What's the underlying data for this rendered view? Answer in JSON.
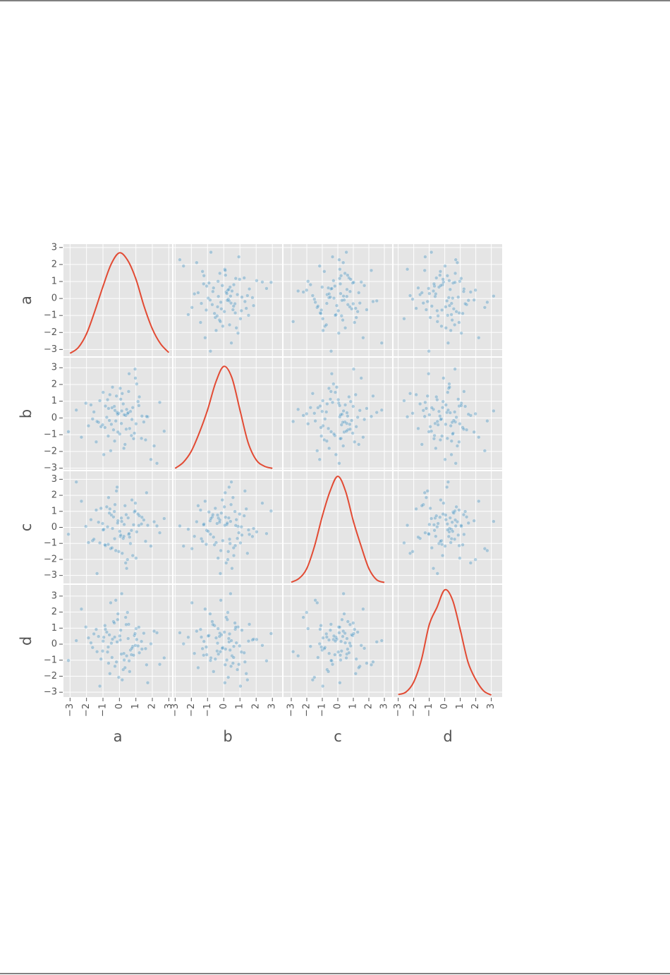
{
  "chart_data": {
    "type": "scatter_matrix",
    "point_color": "#348ABD",
    "kde_color": "#E24A33",
    "background": "#E5E5E5",
    "grid": true,
    "density_lim": [
      0,
      0.45
    ],
    "variables": [
      {
        "name": "a",
        "lim": [
          -3.4,
          3.2
        ],
        "ticks": [
          {
            "value": -3,
            "label": "−3"
          },
          {
            "value": -2,
            "label": "−2"
          },
          {
            "value": -1,
            "label": "−1"
          },
          0,
          1,
          2,
          3
        ],
        "values": [
          0.12,
          -0.85,
          1.34,
          -0.27,
          0.56,
          -1.63,
          0.91,
          -0.04,
          2.11,
          -0.72,
          0.38,
          -1.12,
          1.05,
          -0.49,
          0.23,
          -2.31,
          0.67,
          1.48,
          -0.18,
          -0.95,
          0.81,
          -0.36,
          1.72,
          0.05,
          -1.41,
          0.44,
          -0.61,
          2.45,
          -0.09,
          0.97,
          -1.88,
          0.29,
          -0.53,
          1.21,
          -0.14,
          0.62,
          -2.04,
          1.59,
          -0.77,
          0.17,
          -1.27,
          0.73,
          -0.31,
          1.91,
          -0.66,
          0.08,
          -1.02,
          0.49,
          2.72,
          -0.42,
          0.34,
          -1.55,
          1.13,
          -0.22,
          0.86,
          -2.62,
          0.59,
          -0.88,
          1.37,
          0.02,
          -0.58,
          1.01,
          -1.73,
          0.27,
          -0.11,
          0.76,
          -1.19,
          2.28,
          -0.45,
          0.41,
          -0.99,
          1.65,
          -0.29,
          0.14,
          -1.36,
          0.95,
          -3.1,
          0.53,
          -0.68,
          1.18
        ],
        "kde": {
          "x": [
            -3,
            -2.5,
            -2,
            -1.5,
            -1,
            -0.5,
            0,
            0.5,
            1,
            1.5,
            2,
            2.5,
            3
          ],
          "density": [
            0.012,
            0.035,
            0.09,
            0.18,
            0.28,
            0.37,
            0.415,
            0.385,
            0.31,
            0.2,
            0.11,
            0.05,
            0.015
          ]
        }
      },
      {
        "name": "b",
        "lim": [
          -3.1,
          3.6
        ],
        "ticks": [
          {
            "value": -3,
            "label": "−3"
          },
          {
            "value": -2,
            "label": "−2"
          },
          {
            "value": -1,
            "label": "−1"
          },
          0,
          1,
          2,
          3
        ],
        "values": [
          -0.33,
          0.71,
          -1.22,
          0.45,
          1.58,
          -0.06,
          -0.91,
          0.28,
          -1.67,
          1.09,
          0.15,
          -0.52,
          2.03,
          -0.38,
          0.84,
          -1.15,
          0.39,
          -0.24,
          1.31,
          -2.19,
          0.62,
          -0.71,
          0.07,
          1.77,
          -1.43,
          0.51,
          -0.15,
          0.93,
          -0.84,
          2.38,
          -0.47,
          0.19,
          -1.96,
          1.26,
          0.33,
          -0.63,
          0.88,
          -1.31,
          0.04,
          1.46,
          -0.26,
          -1.05,
          0.69,
          -2.48,
          0.57,
          1.12,
          -0.41,
          0.25,
          -0.79,
          1.84,
          -1.58,
          0.36,
          0.98,
          -0.18,
          -1.24,
          0.47,
          2.64,
          -0.57,
          0.11,
          -0.96,
          1.39,
          -0.35,
          0.78,
          -1.81,
          0.22,
          -0.09,
          1.03,
          -2.71,
          0.61,
          -0.67,
          1.53,
          0.09,
          -1.38,
          0.42,
          -0.21,
          2.92,
          -0.82,
          0.31,
          -1.08,
          0.74
        ],
        "kde": {
          "x": [
            -3,
            -2.5,
            -2,
            -1.5,
            -1,
            -0.5,
            0,
            0.5,
            1,
            1.5,
            2,
            2.5,
            3
          ],
          "density": [
            0.006,
            0.03,
            0.075,
            0.15,
            0.24,
            0.35,
            0.415,
            0.37,
            0.24,
            0.11,
            0.04,
            0.015,
            0.006
          ]
        }
      },
      {
        "name": "c",
        "lim": [
          -3.5,
          3.5
        ],
        "ticks": [
          {
            "value": -3,
            "label": "−3"
          },
          {
            "value": -2,
            "label": "−2"
          },
          {
            "value": -1,
            "label": "−1"
          },
          0,
          1,
          2,
          3
        ],
        "values": [
          0.58,
          -1.14,
          0.21,
          1.42,
          -0.44,
          -0.83,
          0.96,
          -1.51,
          0.35,
          0.03,
          -2.22,
          1.19,
          -0.28,
          0.77,
          -0.69,
          1.63,
          -1.01,
          0.46,
          2.27,
          -0.12,
          -1.76,
          0.65,
          0.13,
          -0.57,
          1.08,
          -2.56,
          0.89,
          -0.34,
          0.41,
          1.51,
          -0.95,
          0.18,
          -1.33,
          0.72,
          2.51,
          -0.61,
          0.06,
          -0.87,
          1.28,
          -1.62,
          0.32,
          -0.19,
          0.99,
          -1.17,
          1.86,
          -0.48,
          0.24,
          -2.01,
          0.55,
          -0.07,
          1.35,
          -0.74,
          0.83,
          -1.45,
          0.16,
          2.83,
          -0.39,
          -1.09,
          0.63,
          -0.25,
          1.15,
          -1.92,
          0.48,
          -0.56,
          0.27,
          1.71,
          -0.97,
          0.09,
          -1.28,
          0.79,
          -0.16,
          2.16,
          -0.71,
          0.37,
          -2.88,
          1.02,
          -0.43,
          0.59,
          -1.06,
          0.12
        ],
        "kde": {
          "x": [
            -3,
            -2.5,
            -2,
            -1.5,
            -1,
            -0.5,
            0,
            0.5,
            1,
            1.5,
            2,
            2.5,
            3
          ],
          "density": [
            0.005,
            0.02,
            0.06,
            0.15,
            0.27,
            0.37,
            0.43,
            0.37,
            0.25,
            0.15,
            0.06,
            0.015,
            0.004
          ]
        }
      },
      {
        "name": "d",
        "lim": [
          -3.3,
          3.7
        ],
        "ticks": [
          {
            "value": -3,
            "label": "−3"
          },
          {
            "value": -2,
            "label": "−2"
          },
          {
            "value": -1,
            "label": "−1"
          },
          0,
          1,
          2,
          3
        ],
        "values": [
          -0.62,
          0.93,
          0.17,
          -1.38,
          1.24,
          -0.21,
          0.54,
          -2.07,
          0.81,
          -0.49,
          1.67,
          -0.93,
          0.29,
          0.06,
          -1.59,
          2.19,
          -0.37,
          0.68,
          -1.11,
          0.43,
          -0.14,
          1.41,
          -2.41,
          0.26,
          0.92,
          -0.73,
          0.58,
          -1.26,
          1.89,
          -0.08,
          0.39,
          -0.99,
          2.58,
          -0.54,
          0.14,
          -1.71,
          1.07,
          -0.28,
          0.75,
          -2.23,
          0.48,
          -0.66,
          1.32,
          0.02,
          -1.19,
          0.87,
          -0.43,
          1.98,
          -0.86,
          0.31,
          -1.47,
          0.64,
          -0.11,
          2.74,
          -0.69,
          0.22,
          -1.04,
          1.16,
          -0.31,
          0.51,
          -1.84,
          0.97,
          0.08,
          -0.58,
          1.53,
          -0.26,
          -2.62,
          0.71,
          -0.83,
          1.22,
          0.19,
          -1.29,
          0.44,
          3.15,
          -0.47,
          0.66,
          -1.02,
          0.35,
          -0.18,
          1.06
        ],
        "kde": {
          "x": [
            -3,
            -2.5,
            -2,
            -1.5,
            -1,
            -0.5,
            0,
            0.5,
            1,
            1.5,
            2,
            2.5,
            3
          ],
          "density": [
            0.01,
            0.02,
            0.06,
            0.15,
            0.29,
            0.36,
            0.43,
            0.39,
            0.27,
            0.14,
            0.07,
            0.025,
            0.008
          ]
        }
      }
    ]
  }
}
